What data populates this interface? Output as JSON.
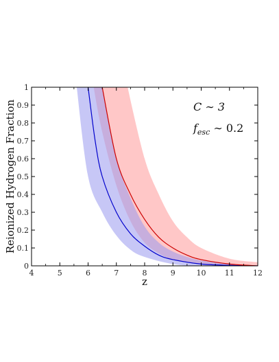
{
  "chart_data": {
    "type": "line",
    "ylabel": "Reionized Hydrogen Fraction",
    "xlabel": "z",
    "xlim": [
      4,
      12
    ],
    "ylim": [
      0,
      1
    ],
    "x_ticks": [
      "4",
      "5",
      "6",
      "7",
      "8",
      "9",
      "10",
      "11",
      "12"
    ],
    "y_ticks": [
      "0",
      "0.1",
      "0.2",
      "0.3",
      "0.4",
      "0.5",
      "0.6",
      "0.7",
      "0.8",
      "0.9",
      "1"
    ],
    "annotations": [
      "C ∼ 3",
      "f",
      "esc",
      " ∼ 0.2"
    ],
    "grid": false,
    "series": [
      {
        "color": "#0000cc",
        "band_color": "#9999ee",
        "points": [
          [
            6.0,
            1.0
          ],
          [
            6.25,
            0.7
          ],
          [
            6.5,
            0.5
          ],
          [
            7.0,
            0.3
          ],
          [
            7.5,
            0.18
          ],
          [
            8.0,
            0.11
          ],
          [
            8.5,
            0.06
          ],
          [
            9.0,
            0.035
          ],
          [
            10.0,
            0.01
          ],
          [
            11.0,
            0.003
          ],
          [
            12.0,
            0.0
          ]
        ],
        "band_lower": [
          [
            5.6,
            1.0
          ],
          [
            6.0,
            0.5
          ],
          [
            6.5,
            0.3
          ],
          [
            7.0,
            0.17
          ],
          [
            7.5,
            0.09
          ],
          [
            8.0,
            0.05
          ],
          [
            9.0,
            0.01
          ],
          [
            10.0,
            0.0
          ],
          [
            12.0,
            0.0
          ]
        ],
        "band_upper": [
          [
            6.5,
            1.0
          ],
          [
            7.0,
            0.6
          ],
          [
            7.5,
            0.38
          ],
          [
            8.0,
            0.22
          ],
          [
            8.5,
            0.13
          ],
          [
            9.0,
            0.08
          ],
          [
            9.5,
            0.05
          ],
          [
            10.0,
            0.03
          ],
          [
            11.0,
            0.01
          ],
          [
            12.0,
            0.0
          ]
        ]
      },
      {
        "color": "#cc0000",
        "band_color": "#ff9999",
        "points": [
          [
            6.5,
            1.0
          ],
          [
            7.0,
            0.6
          ],
          [
            7.5,
            0.4
          ],
          [
            8.0,
            0.26
          ],
          [
            8.5,
            0.16
          ],
          [
            9.0,
            0.1
          ],
          [
            9.5,
            0.06
          ],
          [
            10.0,
            0.035
          ],
          [
            11.0,
            0.01
          ],
          [
            12.0,
            0.0
          ]
        ],
        "band_lower": [
          [
            6.2,
            1.0
          ],
          [
            6.5,
            0.75
          ],
          [
            7.0,
            0.45
          ],
          [
            7.5,
            0.25
          ],
          [
            8.0,
            0.13
          ],
          [
            8.5,
            0.07
          ],
          [
            9.0,
            0.035
          ],
          [
            10.0,
            0.01
          ],
          [
            12.0,
            0.0
          ]
        ],
        "band_upper": [
          [
            7.4,
            1.0
          ],
          [
            8.0,
            0.6
          ],
          [
            8.5,
            0.4
          ],
          [
            9.0,
            0.25
          ],
          [
            9.5,
            0.16
          ],
          [
            10.0,
            0.1
          ],
          [
            11.0,
            0.04
          ],
          [
            12.0,
            0.02
          ]
        ]
      }
    ]
  }
}
